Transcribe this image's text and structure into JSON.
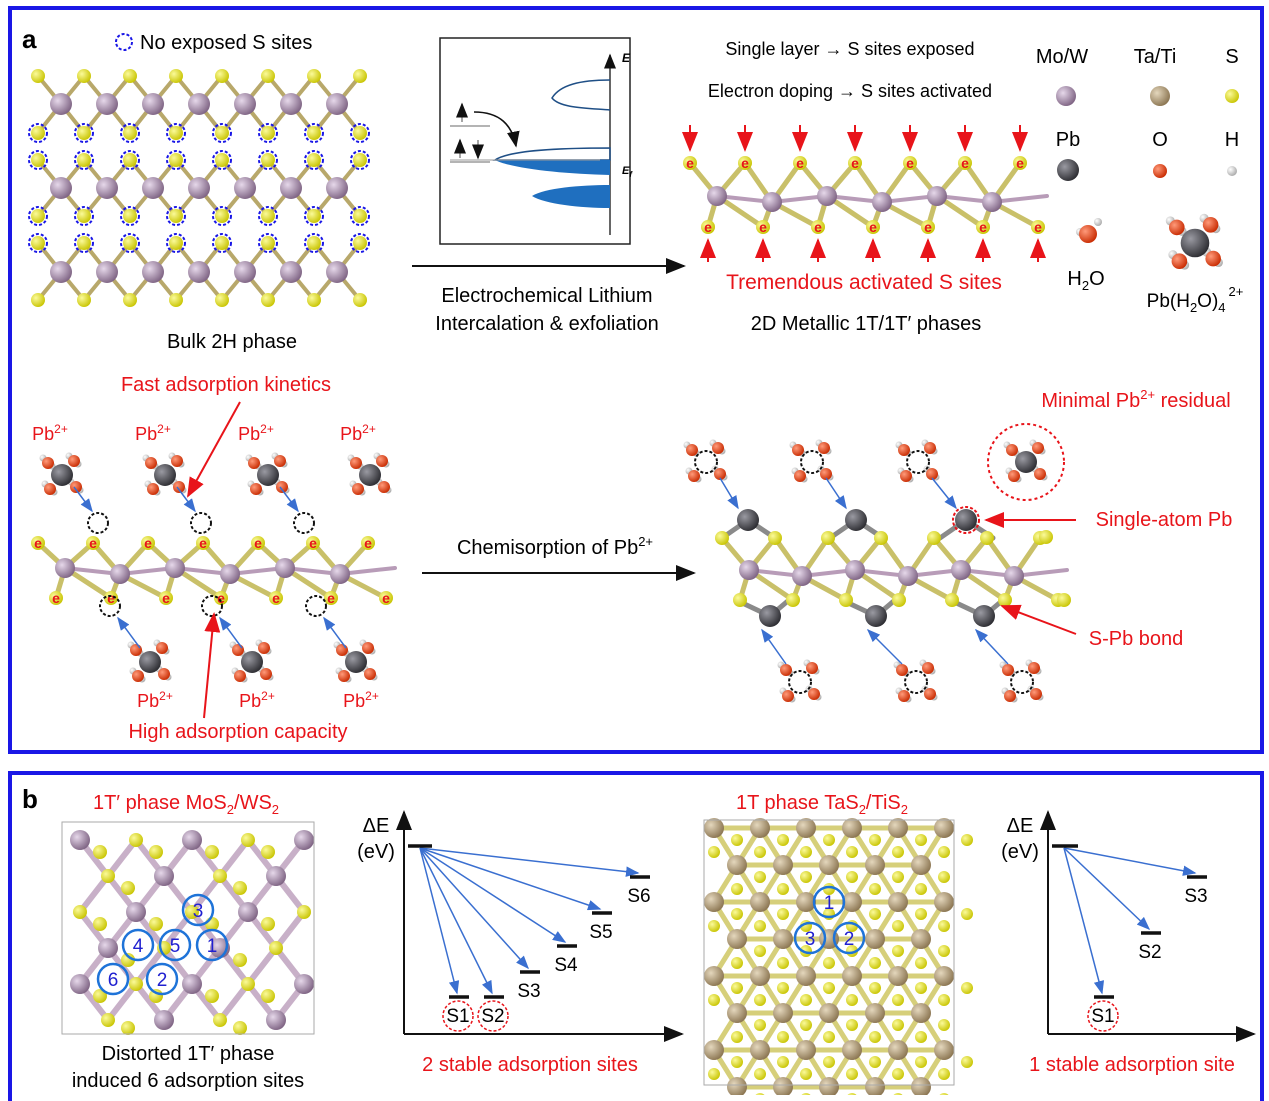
{
  "panel_a": {
    "letter": "a",
    "no_exposed": "No exposed S sites",
    "bulk_label": "Bulk 2H phase",
    "band_E": "E",
    "band_Ef": "E",
    "band_Ef_sub": "f",
    "single_layer": "Single layer → S sites exposed",
    "electron_doping": "Electron doping → S sites activated",
    "process_line1": "Electrochemical Lithium",
    "process_line2": "Intercalation & exfoliation",
    "tremendous": "Tremendous activated S sites",
    "metallic_label": "2D Metallic 1T/1T′ phases",
    "fast_kinetics": "Fast adsorption kinetics",
    "high_capacity": "High adsorption capacity",
    "pb_ion": "Pb",
    "pb_charge": "2+",
    "chemisorption": "Chemisorption of Pb",
    "chemisorption_sup": "2+",
    "minimal_residual": "Minimal Pb",
    "minimal_sup": "2+",
    "minimal_tail": " residual",
    "single_atom": "Single-atom Pb",
    "spb_bond": "S-Pb bond",
    "electron_symbol": "e",
    "legend": {
      "mow": "Mo/W",
      "tati": "Ta/Ti",
      "s": "S",
      "pb": "Pb",
      "o": "O",
      "h": "H",
      "h2o_H": "H",
      "h2o_sub": "2",
      "h2o_O": "O",
      "complex_a": "Pb(H",
      "complex_sub": "2",
      "complex_b": "O)",
      "complex_sub2": "4",
      "complex_sup": "2+"
    },
    "colors": {
      "mo": "#9a7e9e",
      "ta": "#a58f6b",
      "s": "#e8e61a",
      "pb": "#4a4a52",
      "o": "#e83a12",
      "h": "#eeeeee",
      "red": "#e8141a",
      "blue": "#3a6fd0"
    }
  },
  "panel_b": {
    "letter": "b",
    "mos2_title_a": "1T′ phase MoS",
    "mos2_sub": "2",
    "mos2_title_b": "/WS",
    "mos2_sub2": "2",
    "distorted_l1": "Distorted 1T′ phase",
    "distorted_l2": "induced 6 adsorption sites",
    "tas2_title_a": "1T phase TaS",
    "tas2_sub": "2",
    "tas2_title_b": "/TiS",
    "tas2_sub2": "2",
    "delta_e": "ΔE",
    "ev": "(eV)",
    "left_sites": [
      "S1",
      "S2",
      "S3",
      "S4",
      "S5",
      "S6"
    ],
    "right_sites": [
      "S1",
      "S2",
      "S3"
    ],
    "left_caption": "2 stable adsorption sites",
    "right_caption": "1 stable adsorption site",
    "mos2_site_numbers": [
      "1",
      "2",
      "3",
      "4",
      "5",
      "6"
    ],
    "tas2_site_numbers": [
      "1",
      "2",
      "3"
    ]
  }
}
